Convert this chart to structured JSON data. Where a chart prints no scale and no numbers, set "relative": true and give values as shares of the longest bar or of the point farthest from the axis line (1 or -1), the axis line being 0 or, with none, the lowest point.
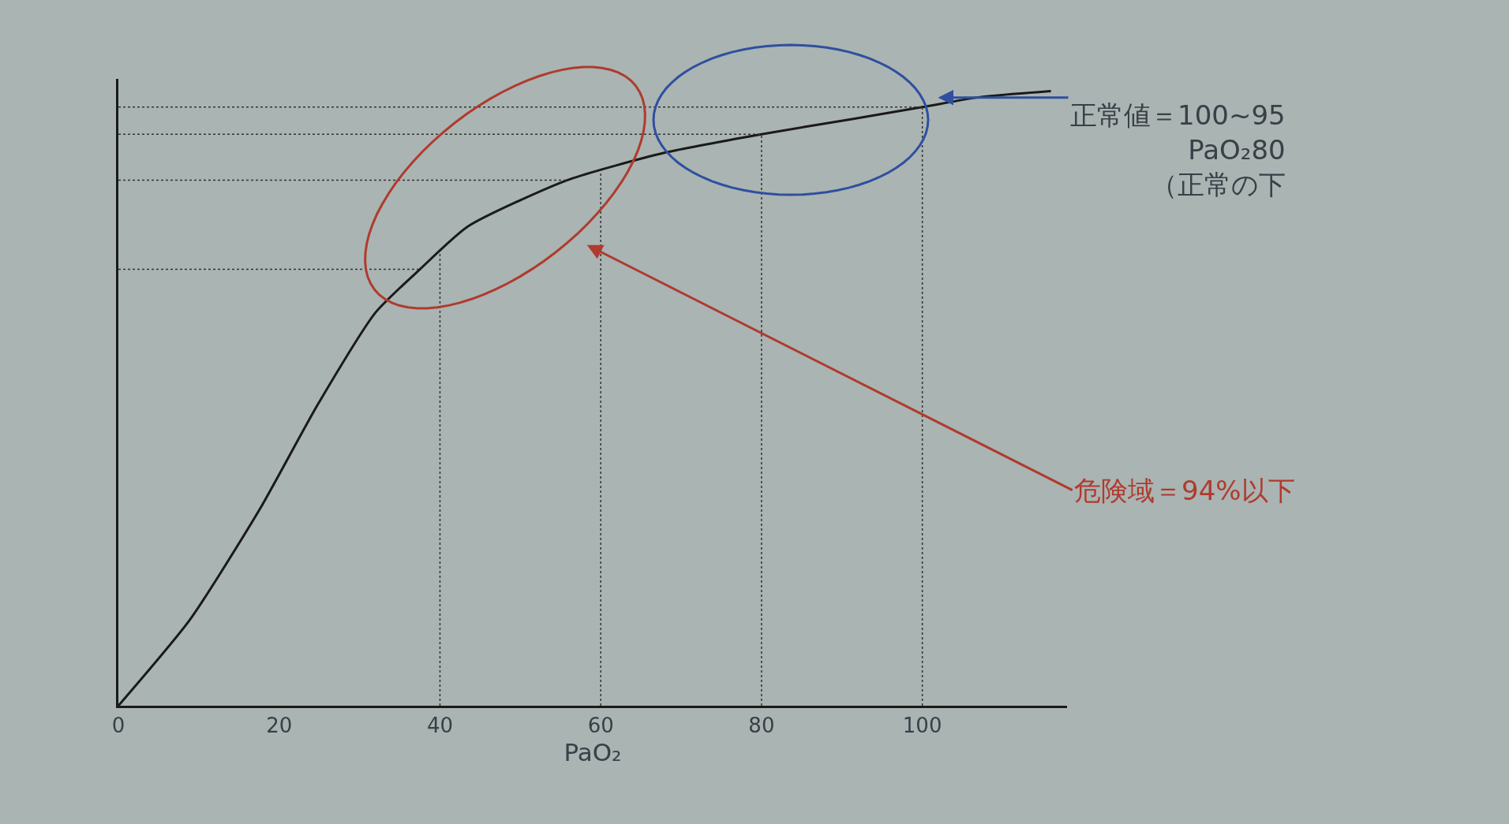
{
  "chart_data": {
    "type": "line",
    "relative": true,
    "xlabel": "PaO₂",
    "x": [
      0,
      8.9,
      17.6,
      24.8,
      32,
      37.5,
      43.5,
      55.8,
      68,
      80,
      91,
      100,
      107,
      116
    ],
    "series": [
      {
        "color": "#1a1a1a",
        "values": [
          0,
          0.14,
          0.32,
          0.49,
          0.64,
          0.71,
          0.78,
          0.855,
          0.9,
          0.93,
          0.954,
          0.974,
          0.99,
          1
        ]
      }
    ],
    "xlim": [
      0,
      118
    ],
    "xticks": [
      0,
      20,
      40,
      60,
      80,
      100
    ],
    "marker": "none",
    "line_style": "solid",
    "ref_lines": [
      {
        "axis": "x",
        "value": 40,
        "color": "#333333",
        "line_style": "dotted"
      },
      {
        "axis": "x",
        "value": 60,
        "color": "#333333",
        "line_style": "dotted"
      },
      {
        "axis": "x",
        "value": 80,
        "color": "#333333",
        "line_style": "dotted"
      },
      {
        "axis": "x",
        "value": 100,
        "color": "#333333",
        "line_style": "dotted"
      },
      {
        "axis": "y",
        "value": 0.71,
        "color": "#333333",
        "line_style": "dotted"
      },
      {
        "axis": "y",
        "value": 0.855,
        "color": "#333333",
        "line_style": "dotted"
      },
      {
        "axis": "y",
        "value": 0.93,
        "color": "#333333",
        "line_style": "dotted"
      },
      {
        "axis": "y",
        "value": 0.974,
        "color": "#333333",
        "line_style": "dotted"
      }
    ],
    "annotations": [
      "正常値＝100~95\nPaO₂80\n（正常の下",
      "危険域＝94%以下"
    ]
  }
}
